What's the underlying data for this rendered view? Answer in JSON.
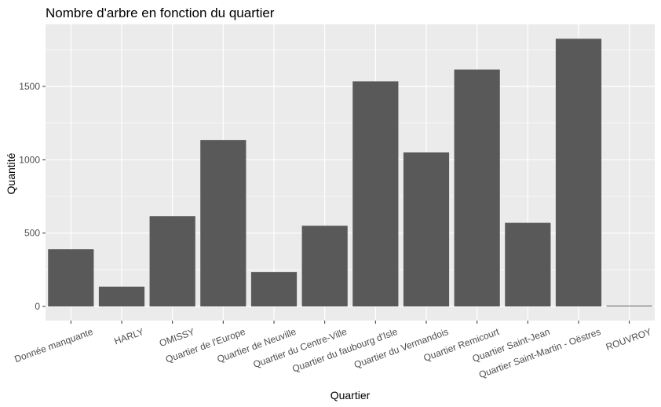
{
  "chart_data": {
    "type": "bar",
    "title": "Nombre d'arbre en fonction du quartier",
    "xlabel": "Quartier",
    "ylabel": "Quantité",
    "categories": [
      "Donnée manquante",
      "HARLY",
      "OMISSY",
      "Quartier de l'Europe",
      "Quartier de Neuville",
      "Quartier du Centre-Ville",
      "Quartier du faubourg d'Isle",
      "Quartier du Vermandois",
      "Quartier Remicourt",
      "Quartier Saint-Jean",
      "Quartier Saint-Martin - Oëstres",
      "ROUVROY"
    ],
    "values": [
      390,
      135,
      615,
      1135,
      235,
      550,
      1535,
      1050,
      1615,
      570,
      1825,
      5
    ],
    "yticks": [
      0,
      500,
      1000,
      1500
    ],
    "ylim": [
      0,
      1900
    ],
    "grid": true,
    "bar_color": "#595959",
    "panel_color": "#ebebeb",
    "grid_color": "#ffffff"
  }
}
